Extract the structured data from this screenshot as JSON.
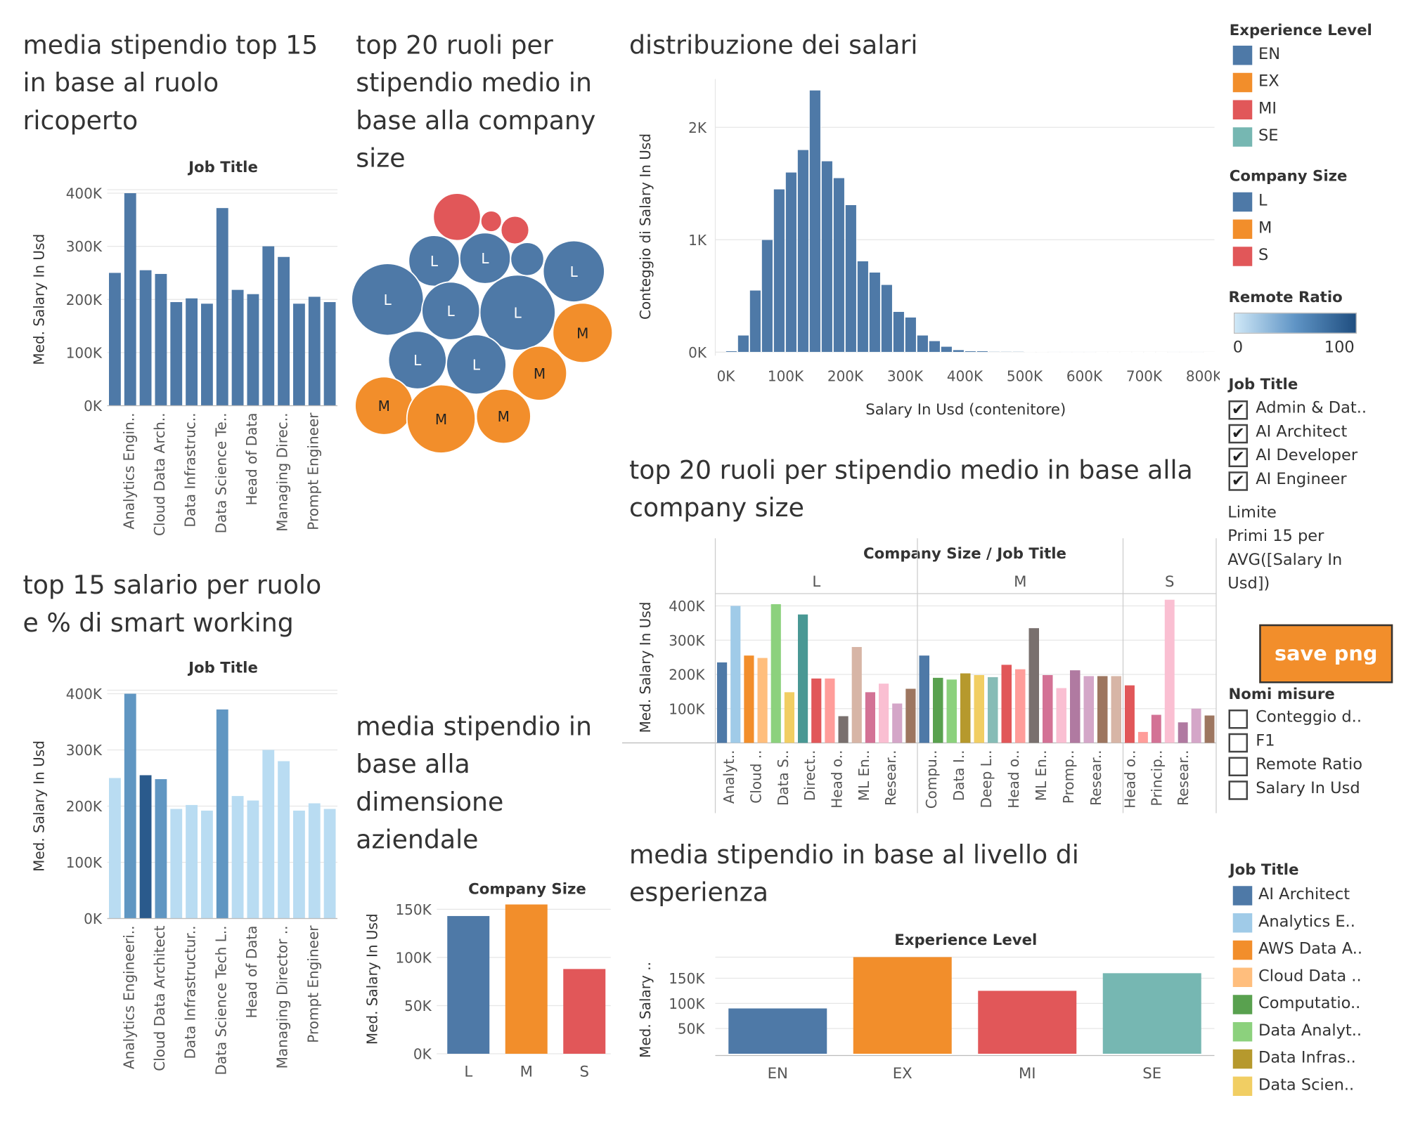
{
  "titles": {
    "role_top15": "media stipendio top 15 in base al ruolo ricoperto",
    "bubble": "top 20 ruoli per stipendio medio in base alla company size",
    "hist": "distribuzione dei salari",
    "remote": "top 15 salario per ruolo e % di smart working",
    "company_size": "media stipendio in base alla dimensione aziendale",
    "grouped": "top 20 ruoli per stipendio medio in base alla company size",
    "experience": "media stipendio in base al livello di esperienza"
  },
  "colors": {
    "blue": "#4e79a7",
    "orange": "#f28e2b",
    "red": "#e15759",
    "teal": "#76b7b2",
    "light_blue": "#b9dcf2",
    "mid_blue": "#6096c2",
    "dark_blue": "#2a5a8c",
    "grid": "#e6e6e6"
  },
  "legends": {
    "experience_level": {
      "title": "Experience Level",
      "items": [
        {
          "label": "EN",
          "color": "#4e79a7"
        },
        {
          "label": "EX",
          "color": "#f28e2b"
        },
        {
          "label": "MI",
          "color": "#e15759"
        },
        {
          "label": "SE",
          "color": "#76b7b2"
        }
      ]
    },
    "company_size": {
      "title": "Company Size",
      "items": [
        {
          "label": "L",
          "color": "#4e79a7"
        },
        {
          "label": "M",
          "color": "#f28e2b"
        },
        {
          "label": "S",
          "color": "#e15759"
        }
      ]
    },
    "remote_ratio": {
      "title": "Remote Ratio",
      "min": "0",
      "max": "100"
    },
    "job_title_filter": {
      "title": "Job Title",
      "items": [
        {
          "label": "Admin & Dat..",
          "checked": true
        },
        {
          "label": "AI Architect",
          "checked": true
        },
        {
          "label": "AI Developer",
          "checked": true
        },
        {
          "label": "AI Engineer",
          "checked": true
        }
      ]
    },
    "limit_note": [
      "Limite",
      "Primi 15 per",
      "AVG([Salary In",
      "Usd])"
    ],
    "save_button": "save png",
    "measure_names": {
      "title": "Nomi misure",
      "items": [
        {
          "label": "Conteggio d..",
          "checked": false
        },
        {
          "label": "F1",
          "checked": false
        },
        {
          "label": "Remote Ratio",
          "checked": false
        },
        {
          "label": "Salary In Usd",
          "checked": false
        }
      ]
    },
    "job_title_colors": {
      "title": "Job Title",
      "items": [
        {
          "label": "AI Architect",
          "color": "#4e79a7"
        },
        {
          "label": "Analytics E..",
          "color": "#a0cbe8"
        },
        {
          "label": "AWS Data A..",
          "color": "#f28e2b"
        },
        {
          "label": "Cloud Data ..",
          "color": "#ffbe7d"
        },
        {
          "label": "Computatio..",
          "color": "#59a14f"
        },
        {
          "label": "Data Analyt..",
          "color": "#8cd17d"
        },
        {
          "label": "Data Infras..",
          "color": "#b6992d"
        },
        {
          "label": "Data Scien..",
          "color": "#f1ce63"
        }
      ]
    }
  },
  "chart_data": [
    {
      "id": "role_top15",
      "type": "bar",
      "xlabel": "Job Title",
      "ylabel": "Med. Salary In Usd",
      "ylim": [
        0,
        400000
      ],
      "y_ticks": [
        "0K",
        "100K",
        "200K",
        "300K",
        "400K"
      ],
      "tick_labels": [
        "Analytics Engin..",
        "Cloud Data Arch..",
        "Data Infrastruc..",
        "Data Science Te..",
        "Head of Data",
        "Managing Direc..",
        "Prompt Engineer"
      ],
      "values": [
        250000,
        400000,
        255000,
        248000,
        195000,
        202000,
        192000,
        372000,
        218000,
        210000,
        300000,
        280000,
        192000,
        205000,
        195000
      ]
    },
    {
      "id": "bubble",
      "type": "bubble",
      "bubbles": [
        {
          "label": "",
          "size": "S",
          "r": 27
        },
        {
          "label": "",
          "size": "S",
          "r": 12
        },
        {
          "label": "",
          "size": "S",
          "r": 16
        },
        {
          "label": "L",
          "size": "L",
          "r": 29
        },
        {
          "label": "L",
          "size": "L",
          "r": 29
        },
        {
          "label": "",
          "size": "L",
          "r": 19
        },
        {
          "label": "L",
          "size": "L",
          "r": 35
        },
        {
          "label": "L",
          "size": "L",
          "r": 41
        },
        {
          "label": "L",
          "size": "L",
          "r": 33
        },
        {
          "label": "L",
          "size": "L",
          "r": 43
        },
        {
          "label": "M",
          "size": "M",
          "r": 34
        },
        {
          "label": "L",
          "size": "L",
          "r": 33
        },
        {
          "label": "L",
          "size": "L",
          "r": 34
        },
        {
          "label": "M",
          "size": "M",
          "r": 31
        },
        {
          "label": "M",
          "size": "M",
          "r": 33
        },
        {
          "label": "M",
          "size": "M",
          "r": 39
        },
        {
          "label": "M",
          "size": "M",
          "r": 31
        }
      ]
    },
    {
      "id": "hist",
      "type": "bar",
      "xlabel": "Salary In Usd (contenitore)",
      "ylabel": "Conteggio di Salary In Usd",
      "x_ticks": [
        "0K",
        "100K",
        "200K",
        "300K",
        "400K",
        "500K",
        "600K",
        "700K",
        "800K"
      ],
      "y_ticks": [
        "0K",
        "1K",
        "2K"
      ],
      "bin_width": 20000,
      "ylim": [
        0,
        2400
      ],
      "values": [
        10,
        150,
        550,
        1000,
        1450,
        1600,
        1800,
        2330,
        1700,
        1550,
        1310,
        810,
        710,
        600,
        360,
        310,
        150,
        100,
        50,
        20,
        10,
        10,
        5,
        5,
        5,
        3,
        3,
        2,
        2,
        2,
        2,
        1,
        1,
        1,
        1,
        1,
        1,
        2,
        2,
        2,
        1,
        1
      ]
    },
    {
      "id": "remote",
      "type": "bar",
      "xlabel": "Job Title",
      "ylabel": "Med. Salary In Usd",
      "ylim": [
        0,
        400000
      ],
      "y_ticks": [
        "0K",
        "100K",
        "200K",
        "300K",
        "400K"
      ],
      "tick_labels": [
        "Analytics Engineeri..",
        "Cloud Data Architect",
        "Data Infrastructur..",
        "Data Science Tech L..",
        "Head of Data",
        "Managing Director ..",
        "Prompt Engineer"
      ],
      "values": [
        250000,
        400000,
        255000,
        248000,
        195000,
        202000,
        192000,
        372000,
        218000,
        210000,
        300000,
        280000,
        192000,
        205000,
        195000
      ],
      "shade": [
        "light",
        "mid",
        "dark",
        "mid",
        "light",
        "light",
        "light",
        "mid",
        "light",
        "light",
        "light",
        "light",
        "light",
        "light",
        "light"
      ]
    },
    {
      "id": "company_size",
      "type": "bar",
      "xlabel": "Company Size",
      "ylabel": "Med. Salary In Usd",
      "ylim": [
        0,
        155000
      ],
      "y_ticks": [
        "0K",
        "50K",
        "100K",
        "150K"
      ],
      "categories": [
        "L",
        "M",
        "S"
      ],
      "values": [
        143000,
        155000,
        88000
      ]
    },
    {
      "id": "grouped",
      "type": "bar",
      "xlabel": "Company Size / Job Title",
      "ylabel": "Med. Salary In Usd",
      "ylim": [
        0,
        420000
      ],
      "y_ticks": [
        "100K",
        "200K",
        "300K",
        "400K"
      ],
      "groups": [
        {
          "name": "L",
          "labels": [
            "Analyt..",
            "Cloud ..",
            "Data S..",
            "Direct..",
            "Head o..",
            "ML En..",
            "Resear.."
          ],
          "values": [
            235000,
            400000,
            255000,
            248000,
            405000,
            148000,
            375000,
            188000,
            188000,
            78000,
            280000,
            148000,
            173000,
            115000,
            158000
          ],
          "colors": [
            "#4e79a7",
            "#a0cbe8",
            "#f28e2b",
            "#ffbe7d",
            "#8cd17d",
            "#f1ce63",
            "#499894",
            "#e15759",
            "#ff9d9a",
            "#79706e",
            "#d7b5a6",
            "#d37295",
            "#fabfd2",
            "#d4a6c8",
            "#9d7660"
          ]
        },
        {
          "name": "M",
          "labels": [
            "Compu..",
            "Data I..",
            "Deep L..",
            "Head o..",
            "ML En..",
            "Promp..",
            "Resear.."
          ],
          "values": [
            255000,
            190000,
            185000,
            203000,
            198000,
            192000,
            228000,
            215000,
            335000,
            198000,
            160000,
            212000,
            195000,
            195000,
            195000
          ],
          "colors": [
            "#4e79a7",
            "#59a14f",
            "#8cd17d",
            "#b6992d",
            "#f1ce63",
            "#86bcb6",
            "#e15759",
            "#ff9d9a",
            "#79706e",
            "#d37295",
            "#fabfd2",
            "#b07aa1",
            "#d4a6c8",
            "#9d7660",
            "#d7b5a6"
          ]
        },
        {
          "name": "S",
          "labels": [
            "Head o..",
            "Princip..",
            "Resear.."
          ],
          "values": [
            168000,
            32000,
            82000,
            418000,
            60000,
            100000,
            80000
          ],
          "colors": [
            "#e15759",
            "#ff9d9a",
            "#d37295",
            "#fabfd2",
            "#b07aa1",
            "#d4a6c8",
            "#9d7660"
          ]
        }
      ]
    },
    {
      "id": "experience",
      "type": "bar",
      "xlabel": "Experience Level",
      "ylabel": "Med. Salary ..",
      "ylim": [
        0,
        195000
      ],
      "y_ticks": [
        "50K",
        "100K",
        "150K"
      ],
      "categories": [
        "EN",
        "EX",
        "MI",
        "SE"
      ],
      "values": [
        90000,
        192000,
        125000,
        160000
      ]
    }
  ]
}
